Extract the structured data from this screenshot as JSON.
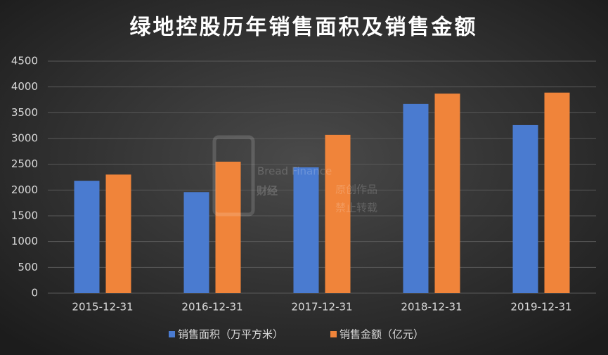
{
  "chart_data": {
    "type": "bar",
    "title": "绿地控股历年销售面积及销售金额",
    "categories": [
      "2015-12-31",
      "2016-12-31",
      "2017-12-31",
      "2018-12-31",
      "2019-12-31"
    ],
    "series": [
      {
        "name": "销售面积（万平方米）",
        "color": "#4a7bd0",
        "values": [
          2180,
          1960,
          2440,
          3670,
          3260
        ]
      },
      {
        "name": "销售金额（亿元）",
        "color": "#f0843a",
        "values": [
          2300,
          2550,
          3070,
          3870,
          3890
        ]
      }
    ],
    "ylim": [
      0,
      4500
    ],
    "yticks": [
      0,
      500,
      1000,
      1500,
      2000,
      2500,
      3000,
      3500,
      4000,
      4500
    ],
    "grid": true,
    "legend": "bottom"
  },
  "watermark": {
    "brand": "Bread Finance",
    "logo": "财经",
    "lines": [
      "原创作品",
      "禁止转载"
    ]
  }
}
